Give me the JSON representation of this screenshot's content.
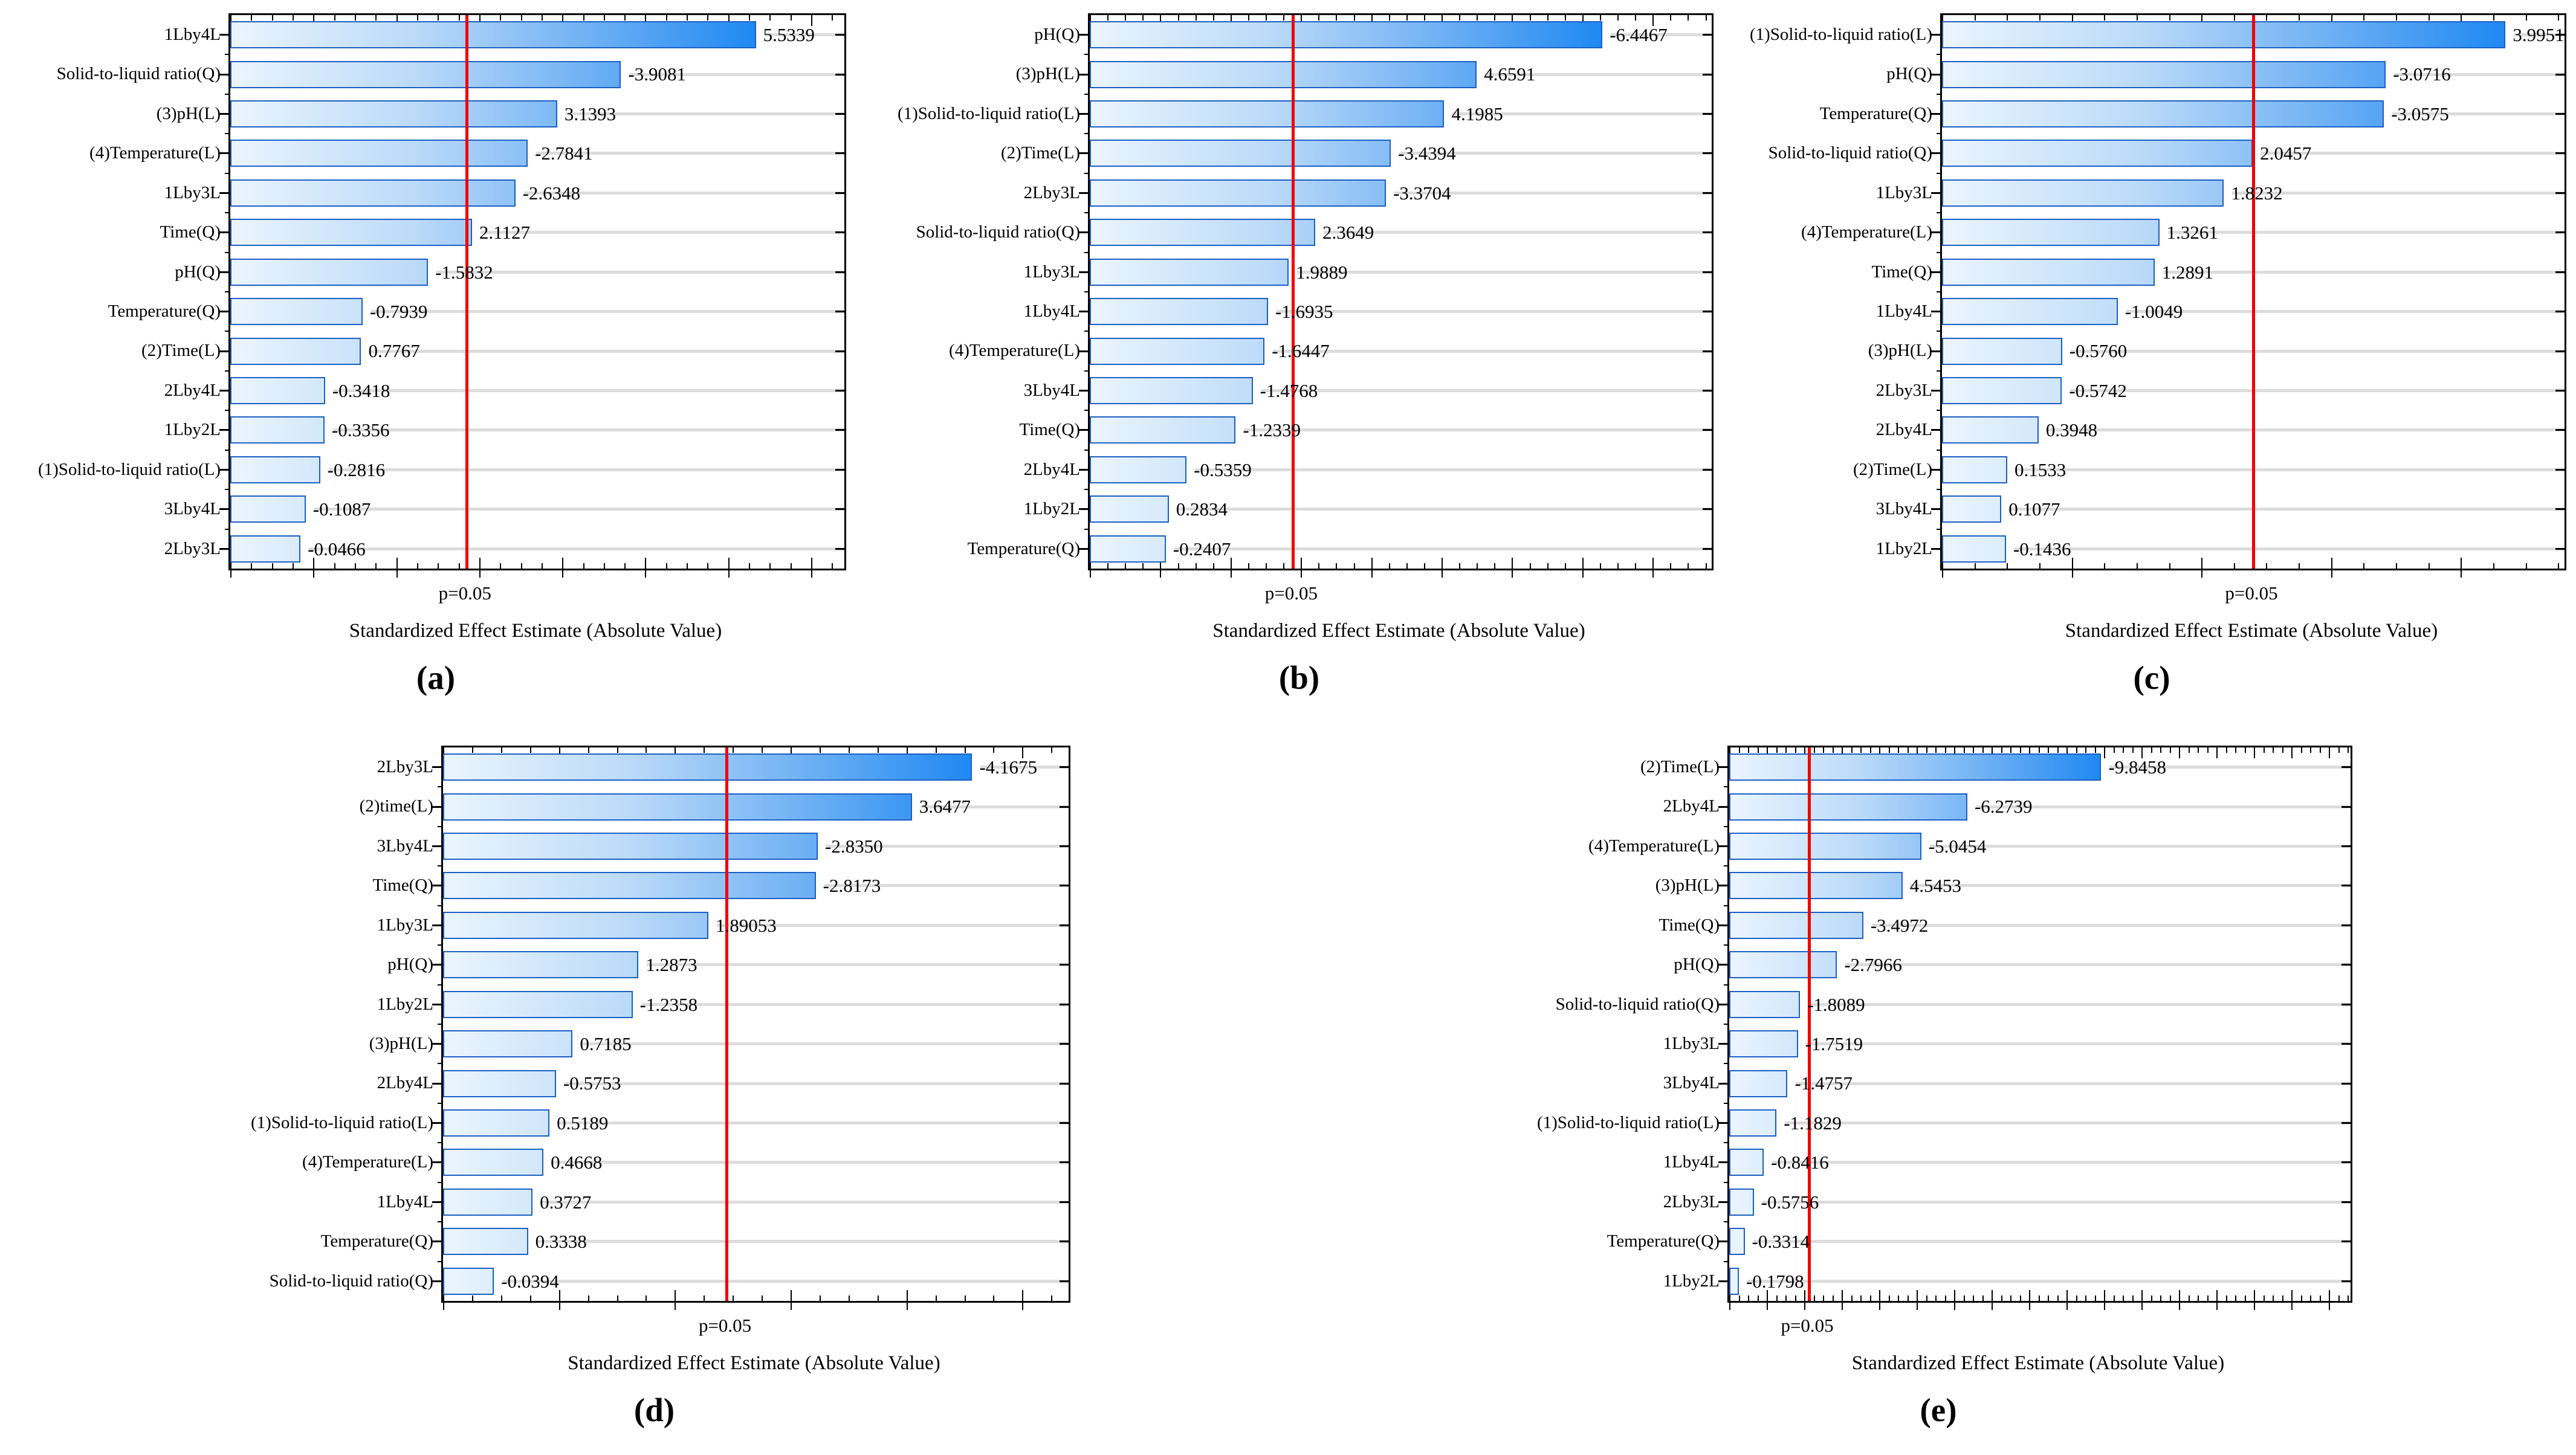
{
  "figure": {
    "axis_title": "Standardized Effect Estimate (Absolute Value)",
    "p_label": "p=0.05"
  },
  "chart_data": [
    {
      "id": "a",
      "type": "bar",
      "orientation": "horizontal",
      "letter": "(a)",
      "xlabel": "Standardized Effect Estimate (Absolute Value)",
      "p_line_label": "p=0.05",
      "legend": "none",
      "grid": "row-lines",
      "categories": [
        "1Lby4L",
        "Solid-to-liquid ratio(Q)",
        "(3)pH(L)",
        "(4)Temperature(L)",
        "1Lby3L",
        "Time(Q)",
        "pH(Q)",
        "Temperature(Q)",
        "(2)Time(L)",
        "2Lby4L",
        "1Lby2L",
        "(1)Solid-to-liquid ratio(L)",
        "3Lby4L",
        "2Lby3L"
      ],
      "values": [
        5.5339,
        -3.9081,
        3.1393,
        -2.7841,
        -2.6348,
        2.1127,
        -1.5832,
        -0.7939,
        0.7767,
        -0.3418,
        -0.3356,
        -0.2816,
        -0.1087,
        -0.0466
      ],
      "value_labels": [
        "5.5339",
        "-3.9081",
        "3.1393",
        "-2.7841",
        "-2.6348",
        "2.1127",
        "-1.5832",
        "-0.7939",
        "0.7767",
        "-0.3418",
        "-0.3356",
        "-0.2816",
        "-0.1087",
        "-0.0466"
      ]
    },
    {
      "id": "b",
      "type": "bar",
      "orientation": "horizontal",
      "letter": "(b)",
      "xlabel": "Standardized Effect Estimate (Absolute Value)",
      "p_line_label": "p=0.05",
      "legend": "none",
      "grid": "row-lines",
      "categories": [
        "pH(Q)",
        "(3)pH(L)",
        "(1)Solid-to-liquid ratio(L)",
        "(2)Time(L)",
        "2Lby3L",
        "Solid-to-liquid ratio(Q)",
        "1Lby3L",
        "1Lby4L",
        "(4)Temperature(L)",
        "3Lby4L",
        "Time(Q)",
        "2Lby4L",
        "1Lby2L",
        "Temperature(Q)"
      ],
      "values": [
        -6.4467,
        4.6591,
        4.1985,
        -3.4394,
        -3.3704,
        2.3649,
        1.9889,
        -1.6935,
        -1.6447,
        -1.4768,
        -1.2339,
        -0.5359,
        0.2834,
        -0.2407
      ],
      "value_labels": [
        "-6.4467",
        "4.6591",
        "4.1985",
        "-3.4394",
        "-3.3704",
        "2.3649",
        "1.9889",
        "-1.6935",
        "-1.6447",
        "-1.4768",
        "-1.2339",
        "-0.5359",
        "0.2834",
        "-0.2407"
      ]
    },
    {
      "id": "c",
      "type": "bar",
      "orientation": "horizontal",
      "letter": "(c)",
      "xlabel": "Standardized Effect Estimate (Absolute Value)",
      "p_line_label": "p=0.05",
      "legend": "none",
      "grid": "row-lines",
      "categories": [
        "(1)Solid-to-liquid ratio(L)",
        "pH(Q)",
        "Temperature(Q)",
        "Solid-to-liquid ratio(Q)",
        "1Lby3L",
        "(4)Temperature(L)",
        "Time(Q)",
        "1Lby4L",
        "(3)pH(L)",
        "2Lby3L",
        "2Lby4L",
        "(2)Time(L)",
        "3Lby4L",
        "1Lby2L"
      ],
      "values": [
        3.9951,
        -3.0716,
        -3.0575,
        2.0457,
        1.8232,
        1.3261,
        1.2891,
        -1.0049,
        -0.576,
        -0.5742,
        0.3948,
        0.1533,
        0.1077,
        -0.1436
      ],
      "value_labels": [
        "3.9951",
        "-3.0716",
        "-3.0575",
        "2.0457",
        "1.8232",
        "1.3261",
        "1.2891",
        "-1.0049",
        "-0.5760",
        "-0.5742",
        "0.3948",
        "0.1533",
        "0.1077",
        "-0.1436"
      ]
    },
    {
      "id": "d",
      "type": "bar",
      "orientation": "horizontal",
      "letter": "(d)",
      "xlabel": "Standardized Effect Estimate (Absolute Value)",
      "p_line_label": "p=0.05",
      "legend": "none",
      "grid": "row-lines",
      "categories": [
        "2Lby3L",
        "(2)time(L)",
        "3Lby4L",
        "Time(Q)",
        "1Lby3L",
        "pH(Q)",
        "1Lby2L",
        "(3)pH(L)",
        "2Lby4L",
        "(1)Solid-to-liquid ratio(L)",
        "(4)Temperature(L)",
        "1Lby4L",
        "Temperature(Q)",
        "Solid-to-liquid ratio(Q)"
      ],
      "values": [
        -4.1675,
        3.6477,
        -2.835,
        -2.8173,
        1.89053,
        1.2873,
        -1.2358,
        0.7185,
        -0.5753,
        0.5189,
        0.4668,
        0.3727,
        0.3338,
        -0.0394
      ],
      "value_labels": [
        "-4.1675",
        "3.6477",
        "-2.8350",
        "-2.8173",
        "1.89053",
        "1.2873",
        "-1.2358",
        "0.7185",
        "-0.5753",
        "0.5189",
        "0.4668",
        "0.3727",
        "0.3338",
        "-0.0394"
      ]
    },
    {
      "id": "e",
      "type": "bar",
      "orientation": "horizontal",
      "letter": "(e)",
      "xlabel": "Standardized Effect Estimate (Absolute Value)",
      "p_line_label": "p=0.05",
      "legend": "none",
      "grid": "row-lines",
      "categories": [
        "(2)Time(L)",
        "2Lby4L",
        "(4)Temperature(L)",
        "(3)pH(L)",
        "Time(Q)",
        "pH(Q)",
        "Solid-to-liquid ratio(Q)",
        "1Lby3L",
        "3Lby4L",
        "(1)Solid-to-liquid ratio(L)",
        "1Lby4L",
        "2Lby3L",
        "Temperature(Q)",
        "1Lby2L"
      ],
      "values": [
        -9.8458,
        -6.2739,
        -5.0454,
        4.5453,
        -3.4972,
        -2.7966,
        -1.8089,
        -1.7519,
        -1.4757,
        -1.1829,
        -0.8416,
        -0.5756,
        -0.3314,
        -0.1798
      ],
      "value_labels": [
        "-9.8458",
        "-6.2739",
        "-5.0454",
        "4.5453",
        "-3.4972",
        "-2.7966",
        "-1.8089",
        "-1.7519",
        "-1.4757",
        "-1.1829",
        "-0.8416",
        "-0.5756",
        "-0.3314",
        "-0.1798"
      ]
    }
  ]
}
